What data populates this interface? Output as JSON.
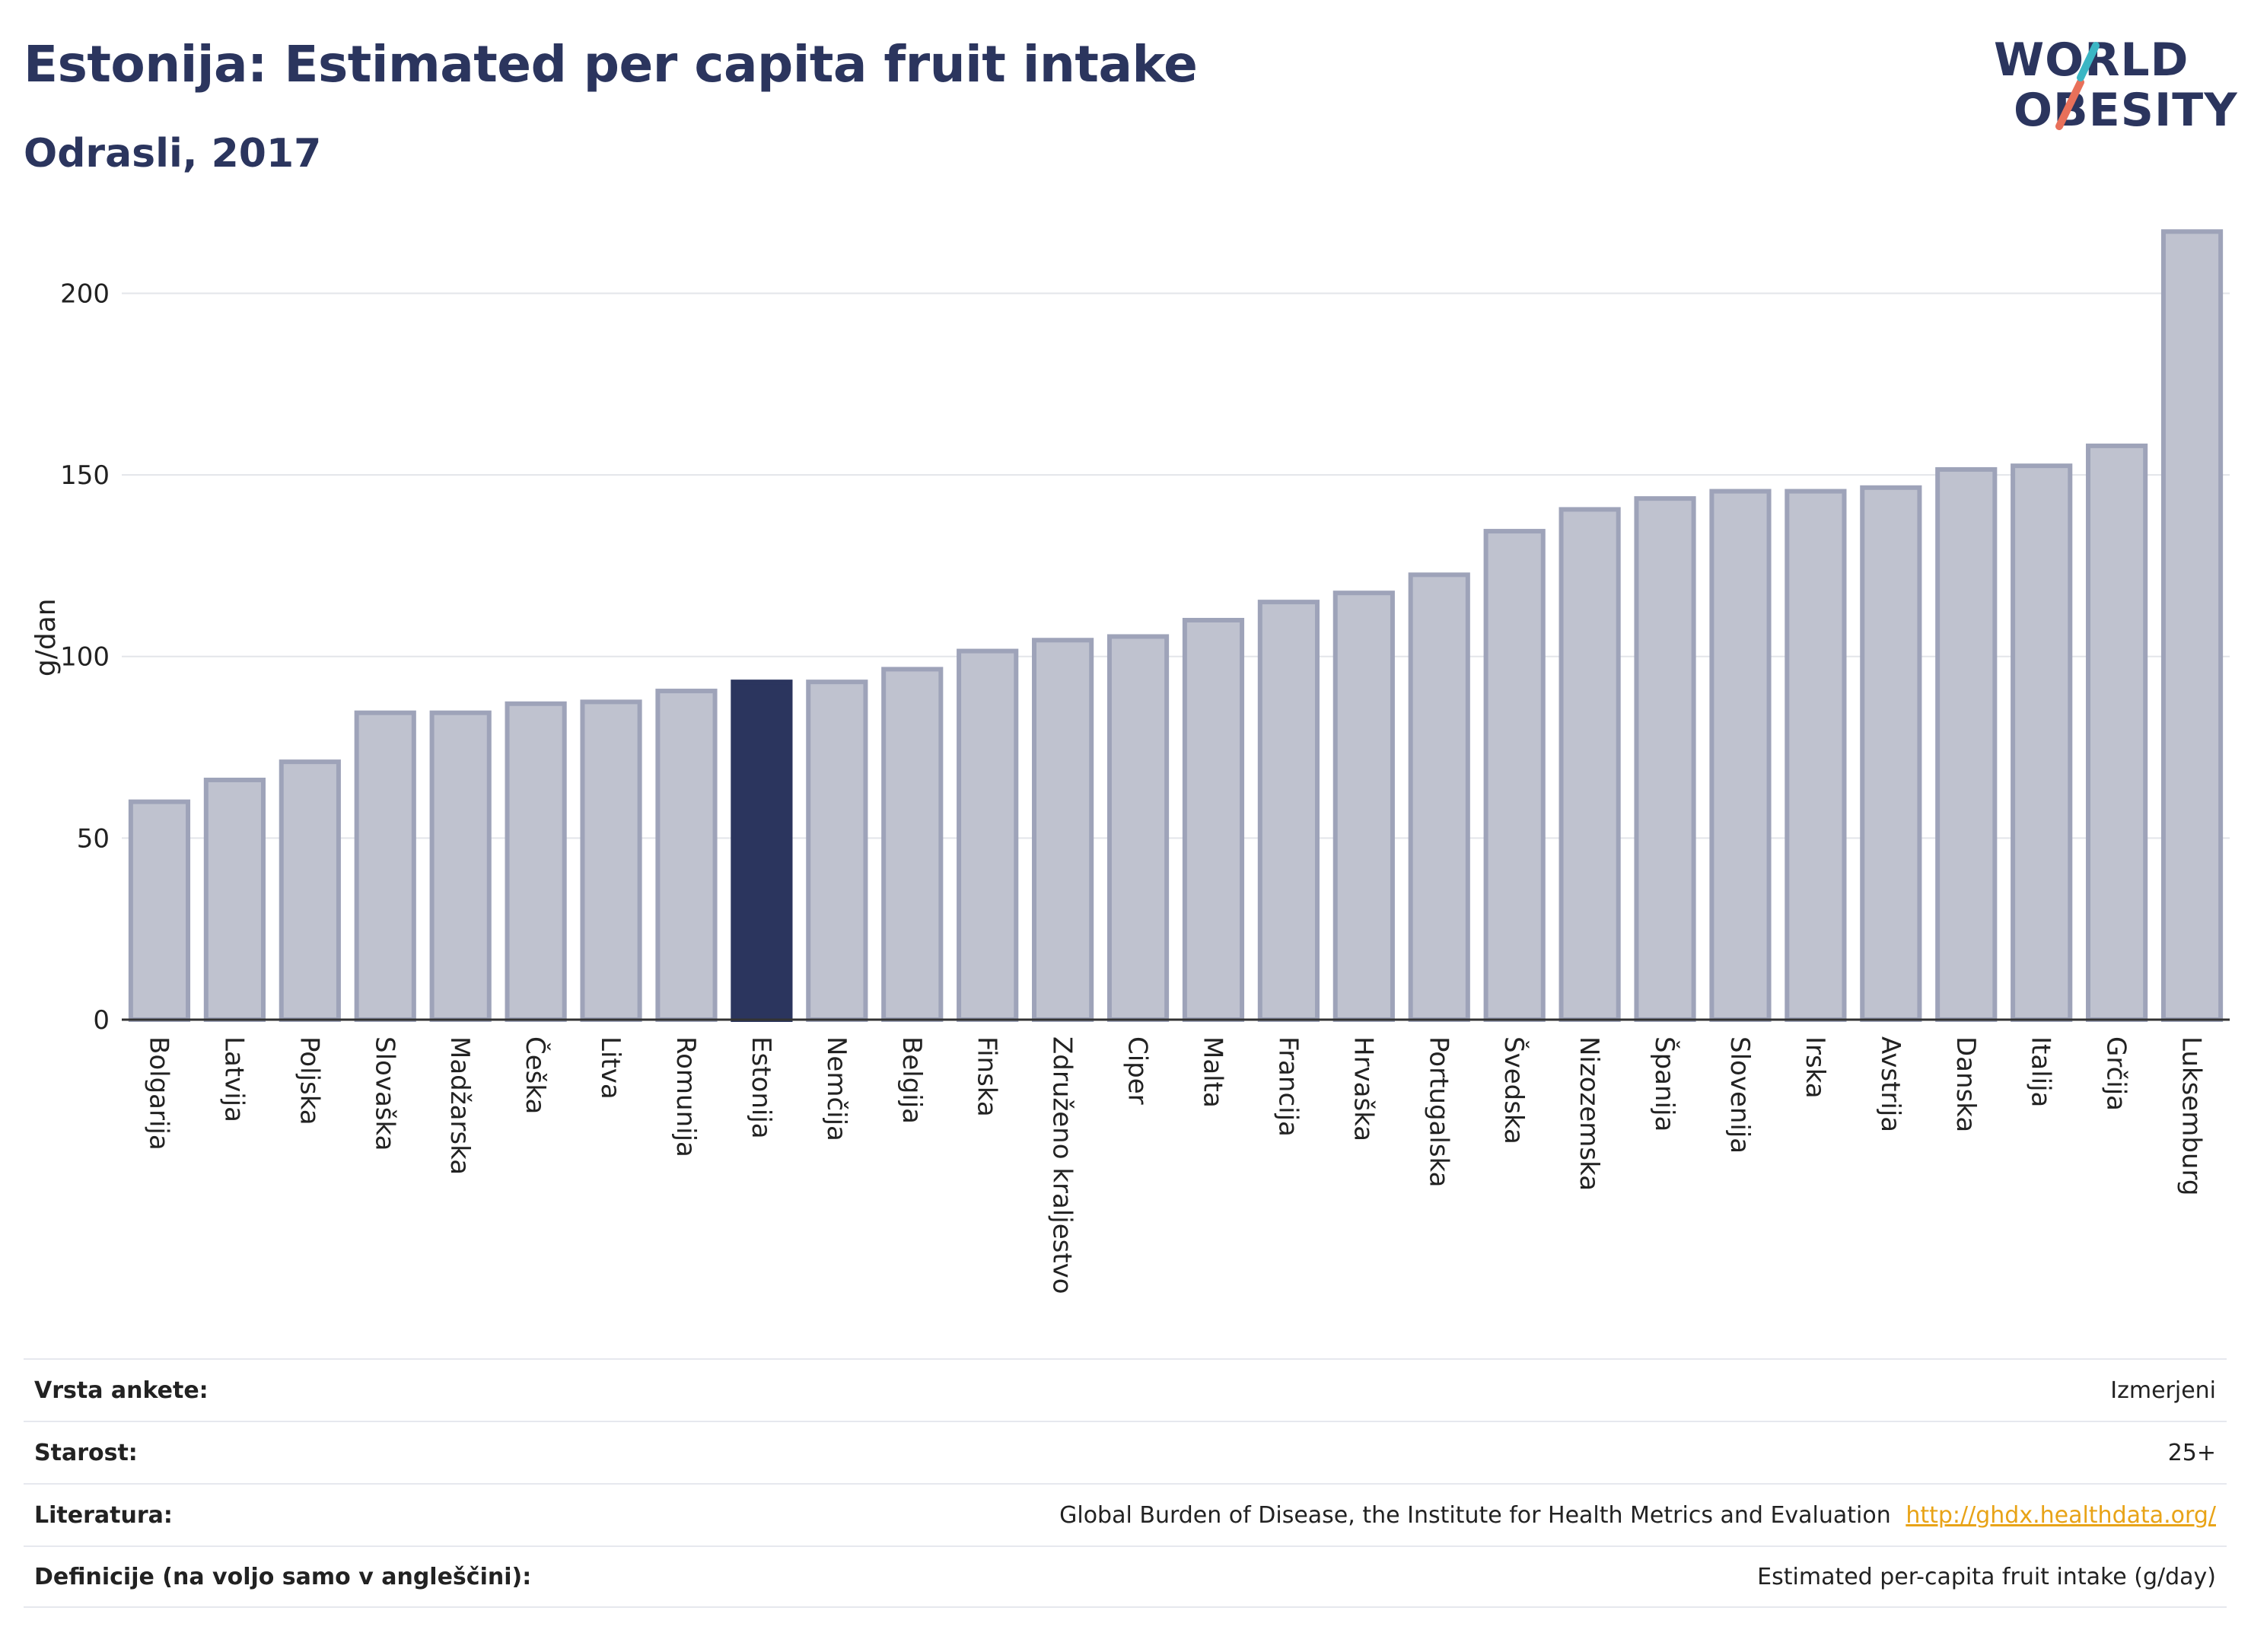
{
  "header": {
    "title": "Estonija: Estimated per capita fruit intake",
    "subtitle": "Odrasli, 2017"
  },
  "logo": {
    "line1": "WORLD",
    "line2": "OBESITY",
    "colors": {
      "text": "#2b355e",
      "slash_top": "#3bb6c4",
      "slash_bottom": "#e8705a"
    }
  },
  "chart_data": {
    "type": "bar",
    "ylabel": "g/dan",
    "xlabel": "",
    "ylim": [
      0,
      220
    ],
    "yticks": [
      0,
      50,
      100,
      150,
      200
    ],
    "grid": true,
    "highlight": "Estonija",
    "colors": {
      "default": "#bfc2cf",
      "default_border": "#9ea3b9",
      "highlight": "#2b355e"
    },
    "categories": [
      "Bolgarija",
      "Latvija",
      "Poljska",
      "Slovaška",
      "Madžarska",
      "Češka",
      "Litva",
      "Romunija",
      "Estonija",
      "Nemčija",
      "Belgija",
      "Finska",
      "Združeno kraljestvo",
      "Ciper",
      "Malta",
      "Francija",
      "Hrvaška",
      "Portugalska",
      "Švedska",
      "Nizozemska",
      "Španija",
      "Slovenija",
      "Irska",
      "Avstrija",
      "Danska",
      "Italija",
      "Grčija",
      "Luksemburg"
    ],
    "values": [
      60,
      66,
      71,
      84.5,
      84.5,
      87,
      87.5,
      90.5,
      93,
      93,
      96.5,
      101.5,
      104.5,
      105.5,
      110,
      115,
      117.5,
      122.5,
      134.5,
      140.5,
      143.5,
      145.5,
      145.5,
      146.5,
      151.5,
      152.5,
      158,
      217
    ]
  },
  "info": [
    {
      "key": "Vrsta ankete:",
      "value": "Izmerjeni"
    },
    {
      "key": "Starost:",
      "value": "25+"
    },
    {
      "key": "Literatura:",
      "value": "Global Burden of Disease, the Institute for Health Metrics and Evaluation",
      "link": "http://ghdx.healthdata.org/"
    },
    {
      "key": "Definicije (na voljo samo v angleščini):",
      "value": "Estimated per-capita fruit intake (g/day)"
    }
  ]
}
